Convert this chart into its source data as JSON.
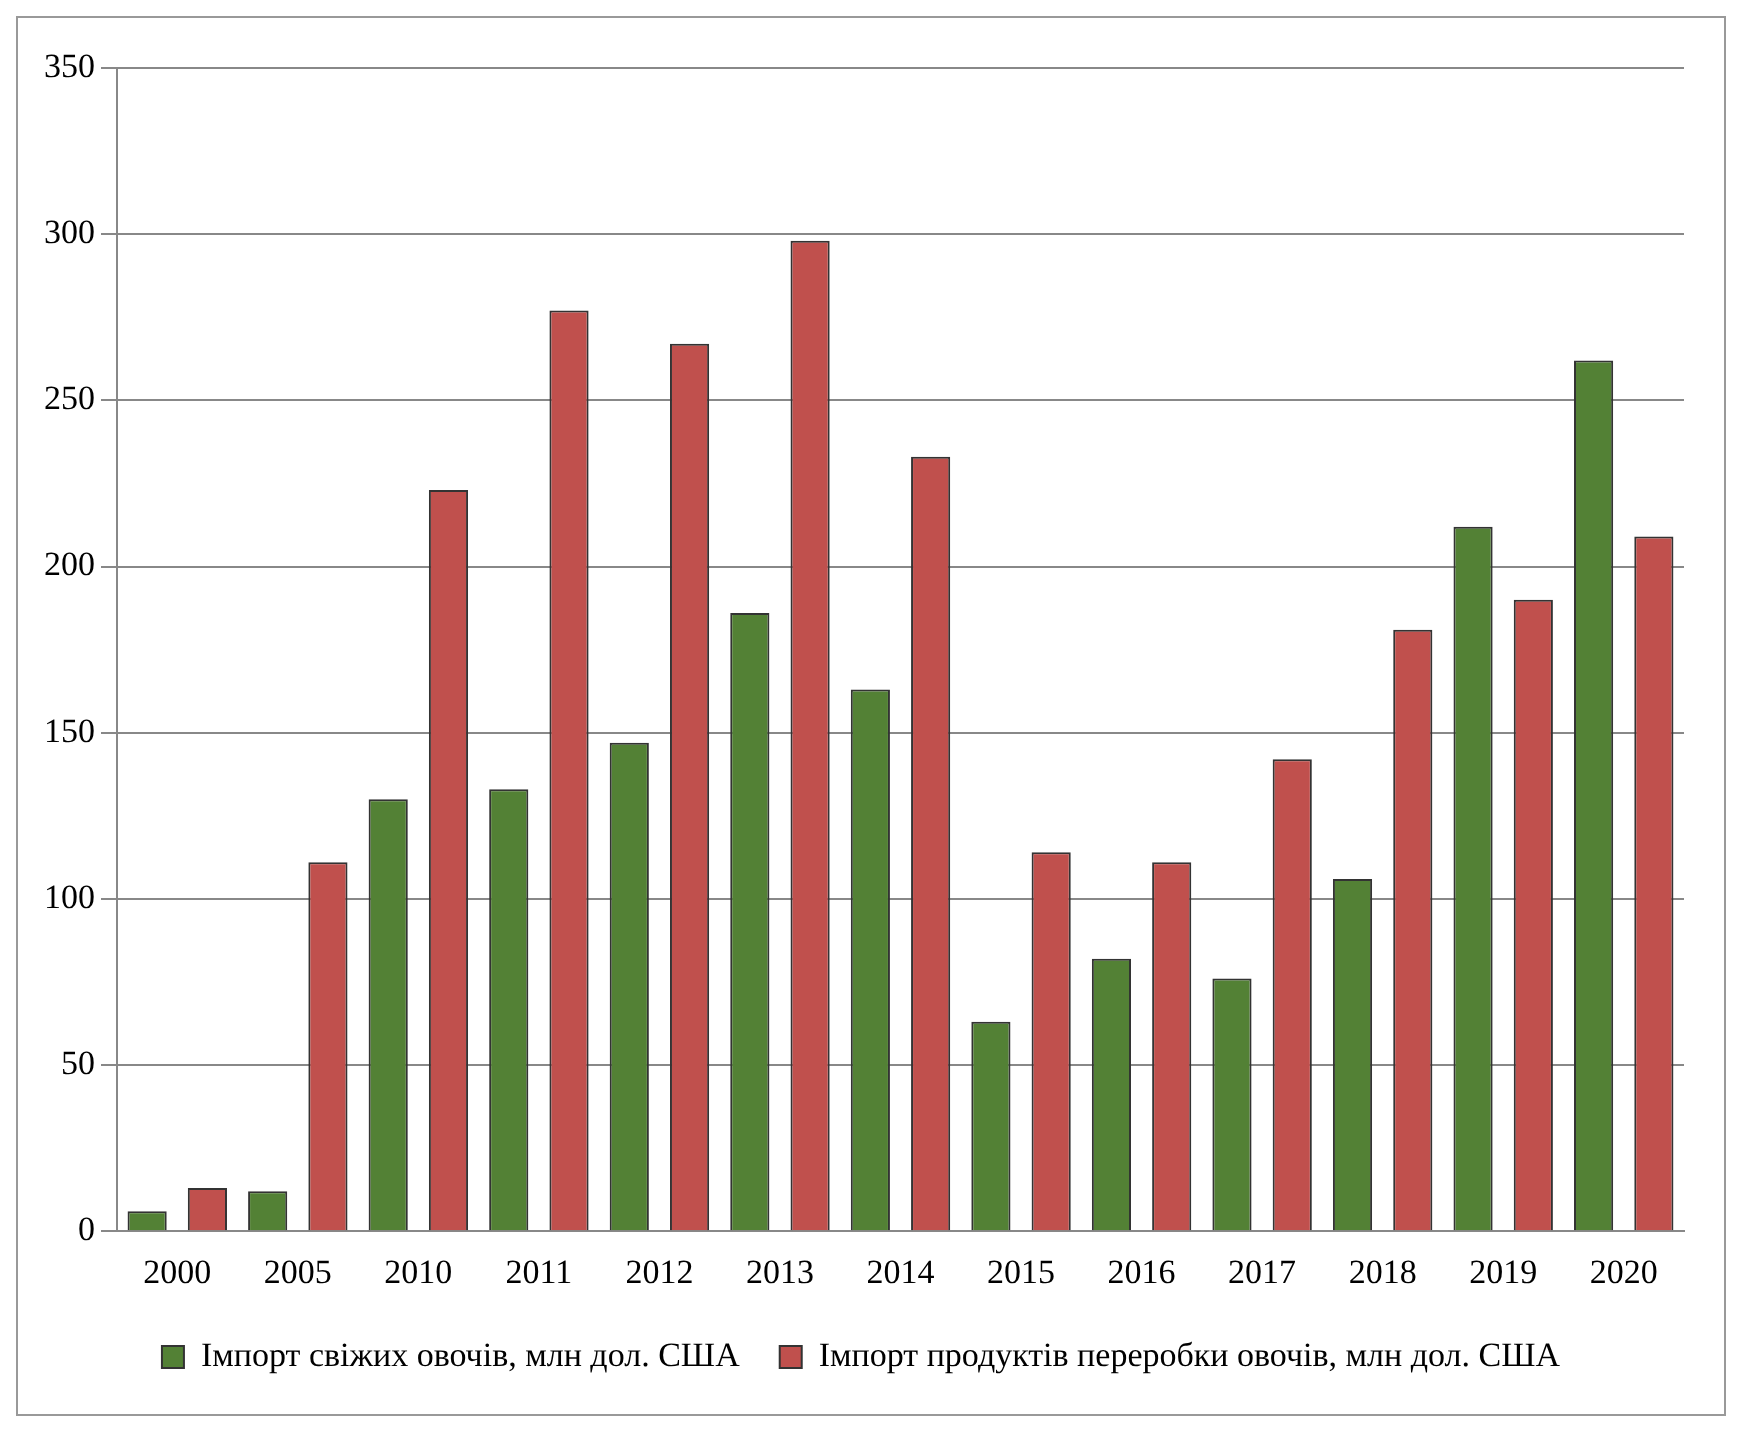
{
  "chart_data": {
    "type": "bar",
    "categories": [
      "2000",
      "2005",
      "2010",
      "2011",
      "2012",
      "2013",
      "2014",
      "2015",
      "2016",
      "2017",
      "2018",
      "2019",
      "2020"
    ],
    "series": [
      {
        "name": "Імпорт свіжих овочів, млн дол. США",
        "color": "#538135",
        "values": [
          6,
          12,
          130,
          133,
          147,
          186,
          163,
          63,
          82,
          76,
          106,
          212,
          262
        ]
      },
      {
        "name": "Імпорт продуктів переробки овочів, млн дол. США",
        "color": "#c0504d",
        "values": [
          13,
          111,
          223,
          277,
          267,
          298,
          233,
          114,
          111,
          142,
          181,
          190,
          209
        ]
      }
    ],
    "ylim": [
      0,
      350
    ],
    "yticks": [
      0,
      50,
      100,
      150,
      200,
      250,
      300,
      350
    ],
    "grid": "y",
    "legend": "bottom"
  }
}
